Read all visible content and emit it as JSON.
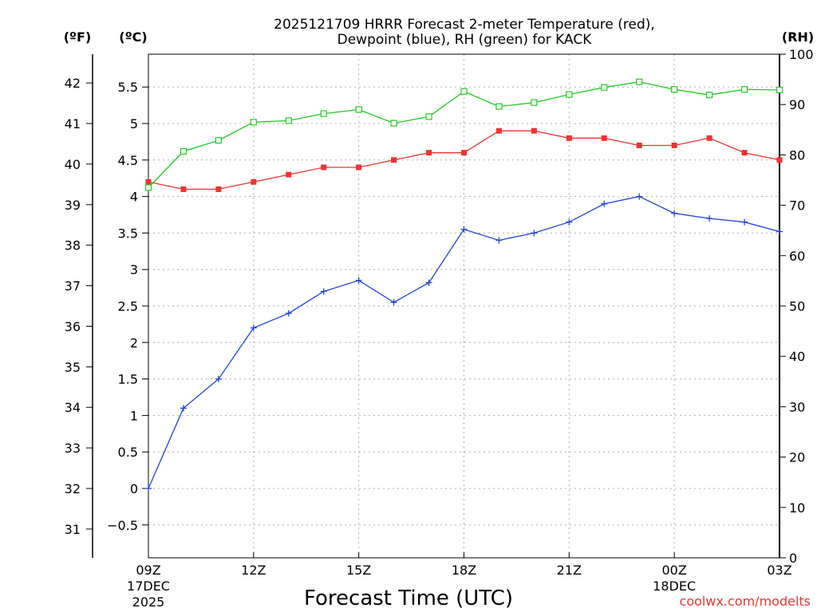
{
  "chart_data": {
    "type": "line",
    "title": "2025121709 HRRR Forecast 2-meter Temperature (red),",
    "subtitle": "Dewpoint (blue), RH (green) for KACK",
    "xlabel": "Forecast Time (UTC)",
    "units": {
      "fahrenheit": "(ºF)",
      "celsius": "(ºC)",
      "rh": "(RH)"
    },
    "x": [
      9,
      10,
      11,
      12,
      13,
      14,
      15,
      16,
      17,
      18,
      19,
      20,
      21,
      22,
      23,
      24,
      25,
      26,
      27
    ],
    "xlim": [
      9,
      27
    ],
    "x_ticks": [
      {
        "x": 9,
        "label": "09Z",
        "sub1": "17DEC",
        "sub2": "2025"
      },
      {
        "x": 12,
        "label": "12Z"
      },
      {
        "x": 15,
        "label": "15Z"
      },
      {
        "x": 18,
        "label": "18Z"
      },
      {
        "x": 21,
        "label": "21Z"
      },
      {
        "x": 24,
        "label": "00Z",
        "sub1": "18DEC"
      },
      {
        "x": 27,
        "label": "03Z"
      }
    ],
    "celsius_axis": {
      "ylim": [
        -0.95,
        5.95
      ],
      "ticks": [
        -0.5,
        0,
        0.5,
        1,
        1.5,
        2,
        2.5,
        3,
        3.5,
        4,
        4.5,
        5,
        5.5
      ],
      "tick_labels": [
        "−0.5",
        "0",
        "0.5",
        "1",
        "1.5",
        "2",
        "2.5",
        "3",
        "3.5",
        "4",
        "4.5",
        "5",
        "5.5"
      ]
    },
    "fahrenheit_axis": {
      "ticks": [
        31,
        32,
        33,
        34,
        35,
        36,
        37,
        38,
        39,
        40,
        41,
        42
      ],
      "tick_labels": [
        "31",
        "32",
        "33",
        "34",
        "35",
        "36",
        "37",
        "38",
        "39",
        "40",
        "41",
        "42"
      ]
    },
    "rh_axis": {
      "ylim": [
        0,
        100
      ],
      "ticks": [
        0,
        10,
        20,
        30,
        40,
        50,
        60,
        70,
        80,
        90,
        100
      ],
      "tick_labels": [
        "0",
        "10",
        "20",
        "30",
        "40",
        "50",
        "60",
        "70",
        "80",
        "90",
        "100"
      ]
    },
    "series": [
      {
        "name": "Temperature",
        "axis": "celsius",
        "color": "#ee3333",
        "marker": "filled-square",
        "values": [
          4.2,
          4.1,
          4.1,
          4.2,
          4.3,
          4.4,
          4.4,
          4.5,
          4.6,
          4.6,
          4.9,
          4.9,
          4.8,
          4.8,
          4.7,
          4.7,
          4.8,
          4.6,
          4.5
        ]
      },
      {
        "name": "Dewpoint",
        "axis": "celsius",
        "color": "#2244dd",
        "marker": "plus",
        "values": [
          0.0,
          1.1,
          1.5,
          2.2,
          2.4,
          2.7,
          2.85,
          2.55,
          2.82,
          3.55,
          3.4,
          3.5,
          3.65,
          3.9,
          4.0,
          3.77,
          3.7,
          3.65,
          3.52
        ]
      },
      {
        "name": "RH",
        "axis": "rh",
        "color": "#22cc22",
        "marker": "open-square",
        "values": [
          73.5,
          80.7,
          82.9,
          86.5,
          86.8,
          88.2,
          89.0,
          86.3,
          87.6,
          92.6,
          89.6,
          90.4,
          92.0,
          93.4,
          94.5,
          93.0,
          91.9,
          93.0,
          92.9
        ]
      }
    ],
    "grid": true,
    "watermark": "coolwx.com/modelts"
  }
}
